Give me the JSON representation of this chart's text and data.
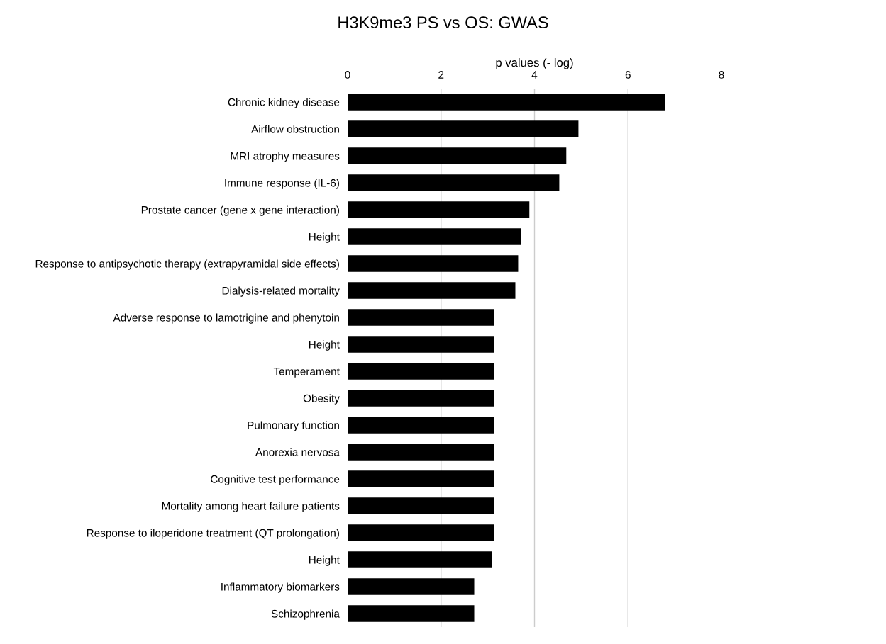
{
  "chart_data": {
    "type": "bar",
    "orientation": "horizontal",
    "title": "H3K9me3 PS vs OS: GWAS",
    "xlabel": "p values (- log)",
    "categories": [
      "Chronic kidney disease",
      "Airflow obstruction",
      "MRI atrophy measures",
      "Immune response (IL-6)",
      "Prostate cancer (gene x gene interaction)",
      "Height",
      "Response to antipsychotic therapy (extrapyramidal side effects)",
      "Dialysis-related mortality",
      "Adverse response to lamotrigine and phenytoin",
      "Height",
      "Temperament",
      "Obesity",
      "Pulmonary function",
      "Anorexia nervosa",
      "Cognitive test performance",
      "Mortality among heart failure patients",
      "Response to iloperidone treatment (QT prolongation)",
      "Height",
      "Inflammatory biomarkers",
      "Schizophrenia"
    ],
    "values": [
      6.79,
      4.94,
      4.68,
      4.53,
      3.89,
      3.71,
      3.65,
      3.59,
      3.13,
      3.13,
      3.13,
      3.13,
      3.13,
      3.13,
      3.13,
      3.13,
      3.13,
      3.09,
      2.71,
      2.71
    ],
    "color": "#000000",
    "xlim": [
      0,
      8
    ],
    "xticks": [
      0,
      2,
      4,
      6,
      8
    ],
    "grid": "x"
  }
}
